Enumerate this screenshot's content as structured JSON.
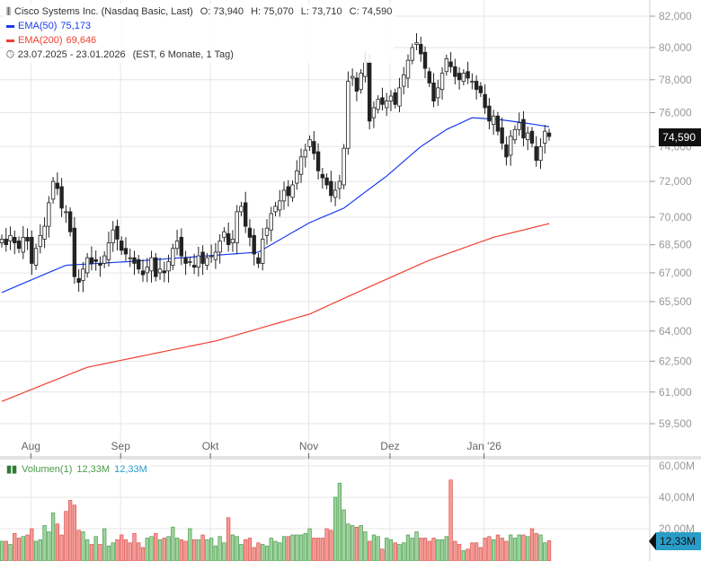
{
  "header": {
    "title": "Cisco Systems Inc. (Nasdaq Basic, Last)",
    "open": "O: 73,940",
    "high": "H: 75,070",
    "low": "L: 73,710",
    "close": "C: 74,590",
    "ema50_label": "EMA(50)",
    "ema50_value": "75,173",
    "ema200_label": "EMA(200)",
    "ema200_value": "69,646",
    "range": "23.07.2025 - 23.01.2026",
    "range_info": "(EST, 6 Monate, 1 Tag)"
  },
  "price_badge": "74,590",
  "volume_badge": "12,33M",
  "volume_legend": {
    "label": "Volumen(1)",
    "value1": "12,33M",
    "value2": "12,33M"
  },
  "colors": {
    "up": "#2e7d32",
    "down": "#e53935",
    "ema50": "#1a3cf0",
    "ema200": "#f04030",
    "badge": "#111111",
    "vbadge": "#2a9cc8"
  },
  "chart_data": {
    "type": "candlestick",
    "yaxis": {
      "scale": "log",
      "range": [
        59.5,
        82.0
      ],
      "ticks": [
        "82,000",
        "80,000",
        "78,000",
        "76,000",
        "74,000",
        "72,000",
        "70,000",
        "68,500",
        "67,000",
        "65,500",
        "64,000",
        "62,500",
        "61,000",
        "59,500"
      ],
      "tick_values": [
        82,
        80,
        78,
        76,
        74,
        72,
        70,
        68.5,
        67,
        65.5,
        64,
        62.5,
        61,
        59.5
      ]
    },
    "xaxis": {
      "labels": [
        {
          "text": "Aug",
          "index": 7
        },
        {
          "text": "Sep",
          "index": 28
        },
        {
          "text": "Okt",
          "index": 49
        },
        {
          "text": "Nov",
          "index": 72
        },
        {
          "text": "Dez",
          "index": 91
        },
        {
          "text": "Jan '26",
          "index": 113
        }
      ]
    },
    "closes": [
      68.8,
      68.5,
      69.0,
      68.6,
      68.3,
      68.9,
      68.7,
      67.5,
      68.3,
      69.0,
      69.5,
      70.8,
      72.0,
      71.6,
      70.5,
      70.3,
      69.2,
      66.8,
      66.5,
      67.2,
      67.8,
      67.5,
      67.6,
      67.4,
      67.9,
      68.6,
      69.3,
      68.8,
      68.2,
      68.0,
      67.8,
      67.5,
      67.2,
      66.9,
      67.3,
      67.8,
      66.8,
      67.2,
      67.0,
      67.6,
      68.3,
      68.7,
      67.9,
      67.5,
      67.6,
      67.3,
      67.9,
      67.5,
      67.8,
      67.9,
      68.1,
      68.7,
      69.2,
      68.5,
      68.8,
      70.3,
      70.6,
      69.5,
      68.9,
      68.0,
      67.5,
      68.8,
      69.4,
      70.2,
      70.6,
      70.9,
      71.5,
      71.2,
      71.8,
      72.6,
      73.4,
      73.8,
      74.4,
      73.6,
      72.6,
      72.2,
      71.8,
      71.2,
      71.5,
      72.0,
      73.9,
      77.9,
      78.2,
      77.3,
      78.4,
      79.1,
      75.5,
      76.3,
      76.8,
      76.5,
      76.7,
      77.0,
      76.5,
      77.5,
      78.3,
      79.2,
      80.0,
      80.3,
      79.6,
      78.7,
      77.8,
      76.7,
      77.5,
      78.4,
      79.3,
      78.8,
      78.2,
      78.0,
      78.4,
      78.1,
      77.9,
      77.4,
      77.2,
      76.3,
      75.5,
      75.8,
      74.9,
      74.2,
      73.4,
      74.6,
      75.0,
      75.4,
      74.5,
      74.8,
      74.2,
      73.2,
      74.0,
      74.9,
      74.59
    ],
    "ema50": [
      [
        0,
        65.97
      ],
      [
        15,
        67.4
      ],
      [
        30,
        67.6
      ],
      [
        60,
        68.1
      ],
      [
        72,
        69.7
      ],
      [
        80,
        70.5
      ],
      [
        90,
        72.3
      ],
      [
        98,
        74.0
      ],
      [
        104,
        75.0
      ],
      [
        110,
        75.7
      ],
      [
        116,
        75.6
      ],
      [
        122,
        75.4
      ],
      [
        128,
        75.17
      ]
    ],
    "ema200": [
      [
        0,
        60.55
      ],
      [
        20,
        62.2
      ],
      [
        50,
        63.5
      ],
      [
        72,
        64.86
      ],
      [
        100,
        67.67
      ],
      [
        115,
        68.9
      ],
      [
        128,
        69.646
      ]
    ],
    "volume": {
      "axis_ticks": [
        "60,00M",
        "40,00M",
        "20,00M"
      ],
      "tick_values": [
        60,
        40,
        20
      ],
      "max": 60,
      "values": [
        12,
        12,
        10,
        17,
        14,
        15,
        16,
        20,
        12,
        13,
        22,
        18,
        30,
        23,
        16,
        31,
        38,
        35,
        19,
        18,
        13,
        10,
        15,
        10,
        20,
        9,
        11,
        13,
        16,
        13,
        11,
        17,
        11,
        8,
        14,
        15,
        17,
        13,
        14,
        15,
        21,
        14,
        13,
        12,
        20,
        13,
        13,
        16,
        13,
        14,
        9,
        15,
        11,
        27,
        16,
        15,
        10,
        13,
        14,
        8,
        11,
        10,
        9,
        14,
        12,
        11,
        15,
        15,
        16,
        16,
        16,
        17,
        20,
        14,
        14,
        14,
        20,
        19,
        40,
        49,
        32,
        23,
        22,
        21,
        22,
        18,
        12,
        16,
        15,
        7,
        14,
        13,
        11,
        10,
        11,
        16,
        14,
        18,
        14,
        14,
        12,
        14,
        13,
        13,
        15,
        51,
        12,
        10,
        6,
        7,
        11,
        11,
        8,
        14,
        15,
        13,
        16,
        14,
        12,
        16,
        14,
        16,
        16,
        15,
        20,
        17,
        16,
        11,
        12.33
      ]
    }
  }
}
